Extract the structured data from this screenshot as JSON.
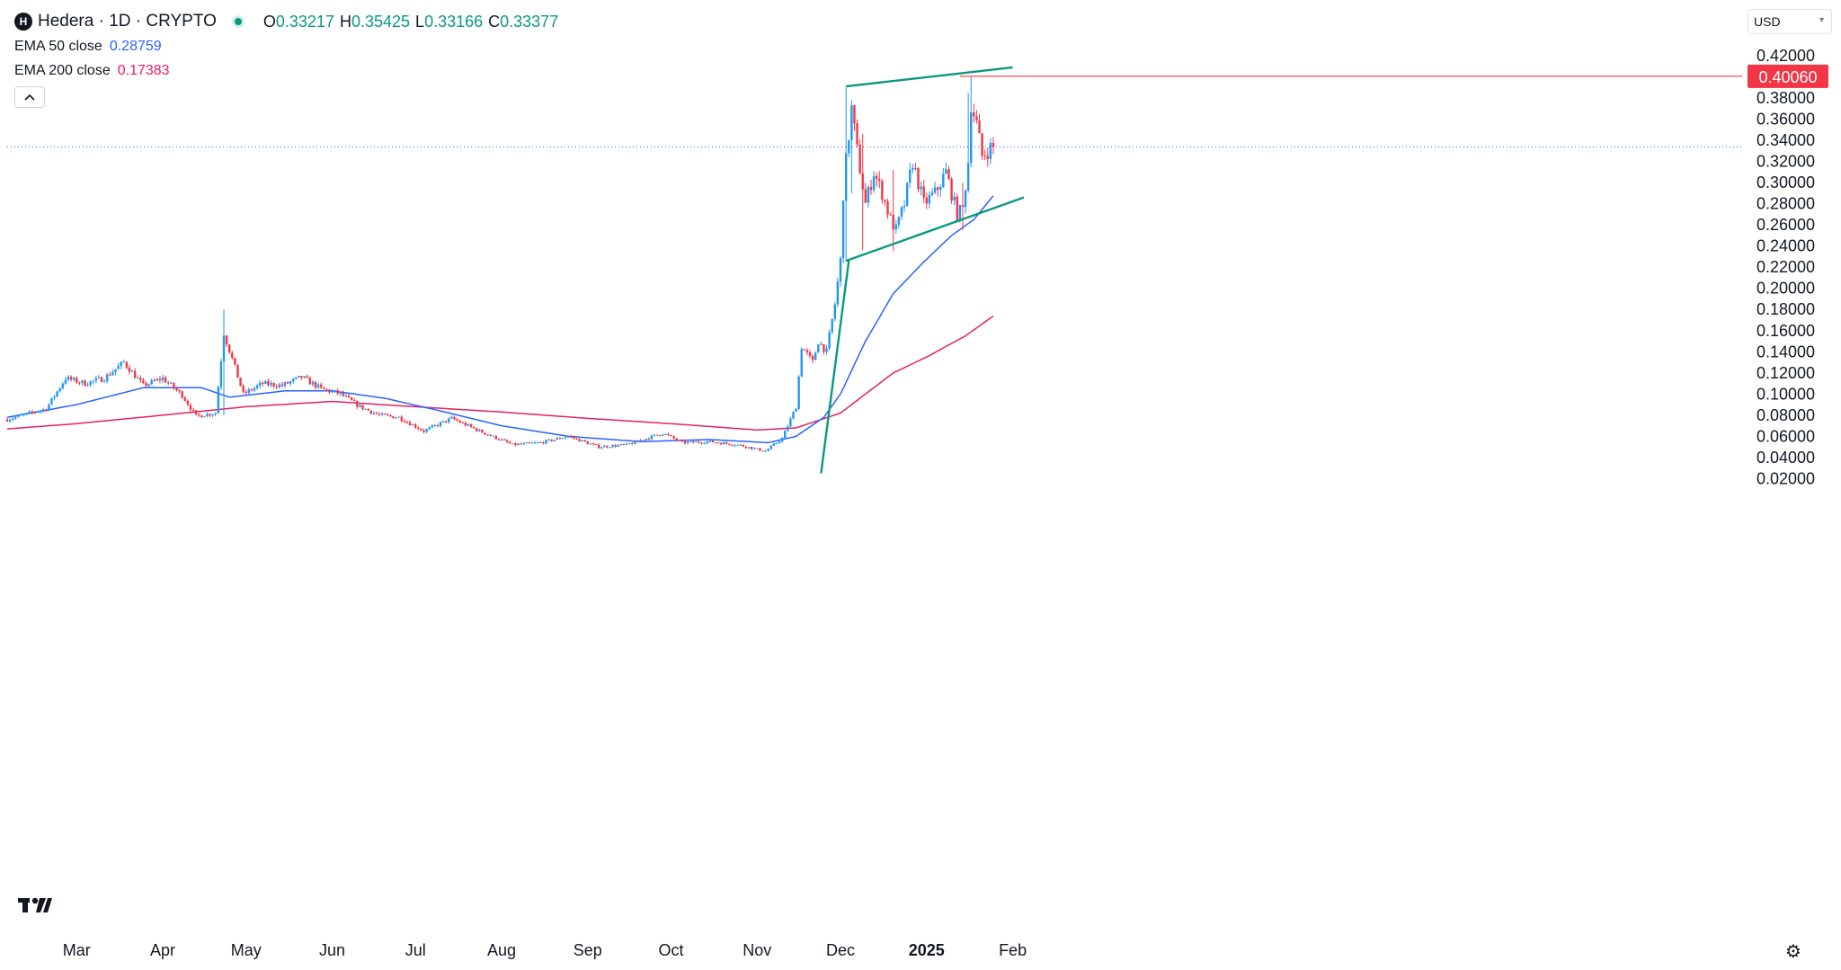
{
  "symbol": {
    "logo_letter": "H",
    "title": "Hedera · 1D · CRYPTO",
    "ohlc": {
      "o_label": "O",
      "o": "0.33217",
      "h_label": "H",
      "h": "0.35425",
      "l_label": "L",
      "l": "0.33166",
      "c_label": "C",
      "c": "0.33377"
    }
  },
  "indicators": [
    {
      "label": "EMA 50 close",
      "value": "0.28759",
      "color": "#2962ff"
    },
    {
      "label": "EMA 200 close",
      "value": "0.17383",
      "color": "#e91e63"
    }
  ],
  "currency": "USD",
  "colors": {
    "up": "#2196f3",
    "down": "#f23645",
    "trendline": "#089981",
    "price_line": "#2962ff"
  },
  "chart_data": {
    "type": "candlestick",
    "title": "",
    "ylim": [
      0.01,
      0.425
    ],
    "y_ticks": [
      "0.42000",
      "0.40000",
      "0.38000",
      "0.36000",
      "0.34000",
      "0.32000",
      "0.30000",
      "0.28000",
      "0.26000",
      "0.24000",
      "0.22000",
      "0.20000",
      "0.18000",
      "0.16000",
      "0.14000",
      "0.12000",
      "0.10000",
      "0.08000",
      "0.06000",
      "0.04000",
      "0.02000"
    ],
    "x_ticks": [
      {
        "label": "Mar",
        "date": "2024-03-01"
      },
      {
        "label": "Apr",
        "date": "2024-04-01"
      },
      {
        "label": "May",
        "date": "2024-05-01"
      },
      {
        "label": "Jun",
        "date": "2024-06-01"
      },
      {
        "label": "Jul",
        "date": "2024-07-01"
      },
      {
        "label": "Aug",
        "date": "2024-08-01"
      },
      {
        "label": "Sep",
        "date": "2024-09-01"
      },
      {
        "label": "Oct",
        "date": "2024-10-01"
      },
      {
        "label": "Nov",
        "date": "2024-11-01"
      },
      {
        "label": "Dec",
        "date": "2024-12-01"
      },
      {
        "label": "2025",
        "date": "2025-01-01",
        "bold": true
      },
      {
        "label": "Feb",
        "date": "2025-02-01"
      }
    ],
    "close_anchors": [
      [
        "2024-02-05",
        0.076
      ],
      [
        "2024-02-12",
        0.081
      ],
      [
        "2024-02-19",
        0.086
      ],
      [
        "2024-02-26",
        0.115
      ],
      [
        "2024-03-04",
        0.11
      ],
      [
        "2024-03-11",
        0.115
      ],
      [
        "2024-03-18",
        0.13
      ],
      [
        "2024-03-25",
        0.108
      ],
      [
        "2024-04-01",
        0.115
      ],
      [
        "2024-04-08",
        0.099
      ],
      [
        "2024-04-13",
        0.079
      ],
      [
        "2024-04-20",
        0.082
      ],
      [
        "2024-04-23",
        0.158
      ],
      [
        "2024-04-30",
        0.1
      ],
      [
        "2024-05-07",
        0.11
      ],
      [
        "2024-05-14",
        0.108
      ],
      [
        "2024-05-21",
        0.116
      ],
      [
        "2024-05-28",
        0.105
      ],
      [
        "2024-06-04",
        0.1
      ],
      [
        "2024-06-11",
        0.088
      ],
      [
        "2024-06-18",
        0.08
      ],
      [
        "2024-06-25",
        0.078
      ],
      [
        "2024-07-04",
        0.065
      ],
      [
        "2024-07-14",
        0.077
      ],
      [
        "2024-07-24",
        0.065
      ],
      [
        "2024-08-05",
        0.052
      ],
      [
        "2024-08-15",
        0.054
      ],
      [
        "2024-08-25",
        0.06
      ],
      [
        "2024-09-05",
        0.05
      ],
      [
        "2024-09-15",
        0.052
      ],
      [
        "2024-09-28",
        0.063
      ],
      [
        "2024-10-05",
        0.054
      ],
      [
        "2024-10-15",
        0.055
      ],
      [
        "2024-10-25",
        0.052
      ],
      [
        "2024-11-04",
        0.046
      ],
      [
        "2024-11-10",
        0.058
      ],
      [
        "2024-11-15",
        0.088
      ],
      [
        "2024-11-17",
        0.145
      ],
      [
        "2024-11-21",
        0.13
      ],
      [
        "2024-11-23",
        0.15
      ],
      [
        "2024-11-26",
        0.14
      ],
      [
        "2024-11-29",
        0.185
      ],
      [
        "2024-12-01",
        0.226
      ],
      [
        "2024-12-02",
        0.29
      ],
      [
        "2024-12-03",
        0.32
      ],
      [
        "2024-12-05",
        0.37
      ],
      [
        "2024-12-07",
        0.33
      ],
      [
        "2024-12-10",
        0.28
      ],
      [
        "2024-12-13",
        0.31
      ],
      [
        "2024-12-16",
        0.29
      ],
      [
        "2024-12-19",
        0.265
      ],
      [
        "2024-12-21",
        0.255
      ],
      [
        "2024-12-24",
        0.28
      ],
      [
        "2024-12-27",
        0.32
      ],
      [
        "2024-12-31",
        0.28
      ],
      [
        "2025-01-04",
        0.29
      ],
      [
        "2025-01-08",
        0.31
      ],
      [
        "2025-01-12",
        0.27
      ],
      [
        "2025-01-14",
        0.275
      ],
      [
        "2025-01-16",
        0.32
      ],
      [
        "2025-01-17",
        0.375
      ],
      [
        "2025-01-19",
        0.355
      ],
      [
        "2025-01-21",
        0.325
      ],
      [
        "2025-01-24",
        0.333
      ],
      [
        "2025-01-25",
        0.33377
      ]
    ],
    "ema50_anchors": [
      [
        "2024-02-05",
        0.078
      ],
      [
        "2024-03-01",
        0.09
      ],
      [
        "2024-03-25",
        0.106
      ],
      [
        "2024-04-15",
        0.106
      ],
      [
        "2024-04-25",
        0.097
      ],
      [
        "2024-05-15",
        0.103
      ],
      [
        "2024-06-01",
        0.103
      ],
      [
        "2024-06-20",
        0.096
      ],
      [
        "2024-07-10",
        0.084
      ],
      [
        "2024-08-01",
        0.07
      ],
      [
        "2024-08-25",
        0.06
      ],
      [
        "2024-09-20",
        0.055
      ],
      [
        "2024-10-15",
        0.057
      ],
      [
        "2024-11-05",
        0.054
      ],
      [
        "2024-11-15",
        0.06
      ],
      [
        "2024-11-25",
        0.078
      ],
      [
        "2024-12-01",
        0.1
      ],
      [
        "2024-12-10",
        0.15
      ],
      [
        "2024-12-20",
        0.195
      ],
      [
        "2024-12-31",
        0.225
      ],
      [
        "2025-01-10",
        0.25
      ],
      [
        "2025-01-18",
        0.265
      ],
      [
        "2025-01-25",
        0.28759
      ]
    ],
    "ema200_anchors": [
      [
        "2024-02-05",
        0.067
      ],
      [
        "2024-03-01",
        0.072
      ],
      [
        "2024-04-01",
        0.08
      ],
      [
        "2024-05-01",
        0.088
      ],
      [
        "2024-06-01",
        0.093
      ],
      [
        "2024-07-01",
        0.088
      ],
      [
        "2024-08-01",
        0.083
      ],
      [
        "2024-09-01",
        0.077
      ],
      [
        "2024-10-01",
        0.072
      ],
      [
        "2024-11-01",
        0.066
      ],
      [
        "2024-11-15",
        0.068
      ],
      [
        "2024-12-01",
        0.082
      ],
      [
        "2024-12-10",
        0.1
      ],
      [
        "2024-12-20",
        0.12
      ],
      [
        "2025-01-01",
        0.135
      ],
      [
        "2025-01-15",
        0.155
      ],
      [
        "2025-01-25",
        0.17383
      ]
    ],
    "spikes": [
      [
        "2024-04-23",
        0.18,
        0.08
      ],
      [
        "2024-12-03",
        0.39,
        0.225
      ],
      [
        "2024-12-05",
        0.378,
        0.29
      ],
      [
        "2024-12-09",
        0.346,
        0.236
      ],
      [
        "2024-12-20",
        0.312,
        0.235
      ],
      [
        "2025-01-16",
        0.385,
        0.31
      ],
      [
        "2025-01-17",
        0.4006,
        0.34
      ],
      [
        "2025-01-14",
        0.3,
        0.255
      ]
    ],
    "trendlines": [
      {
        "from": [
          "2024-11-24",
          0.025
        ],
        "to": [
          "2024-12-04",
          0.226
        ]
      },
      {
        "from": [
          "2024-12-03",
          0.226
        ],
        "to": [
          "2025-02-05",
          0.286
        ]
      },
      {
        "from": [
          "2024-12-03",
          0.391
        ],
        "to": [
          "2025-02-01",
          0.409
        ]
      }
    ],
    "price_line": 0.33377,
    "resistance": {
      "from": "2025-01-13",
      "value": 0.4006,
      "label": "0.40060"
    },
    "date_range": [
      "2024-02-05",
      "2025-01-25"
    ]
  }
}
